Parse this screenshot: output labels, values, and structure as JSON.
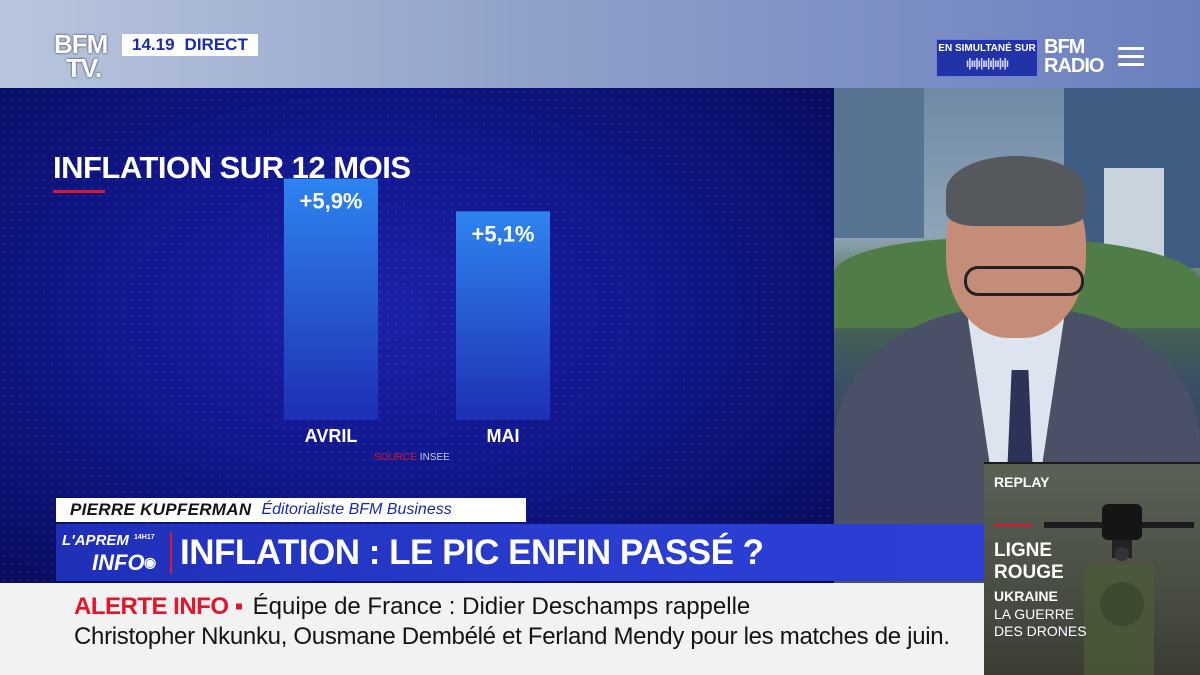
{
  "header": {
    "logo": "BFM TV.",
    "time": "14.19",
    "live_label": "DIRECT",
    "simulcast_label": "EN SIMULTANÉ SUR",
    "radio_logo": "BFM RADIO"
  },
  "chart_data": {
    "type": "bar",
    "title": "INFLATION SUR 12 MOIS",
    "categories": [
      "AVRIL",
      "MAI"
    ],
    "values": [
      5.9,
      5.1
    ],
    "data_labels": [
      "+5,9%",
      "+5,1%"
    ],
    "ylim": [
      0,
      6.6
    ],
    "xlabel": "",
    "ylabel": "",
    "source_word": "SOURCE",
    "source_name": "INSEE",
    "colors": {
      "bar_top": "#2e84f0",
      "bar_bottom": "#1d2fb4",
      "accent": "#e0162b"
    }
  },
  "strap": {
    "name": "PIERRE KUPFERMAN",
    "role": "Éditorialiste BFM Business"
  },
  "headline_bar": {
    "show_line1": "L'APREM",
    "show_line2": "INFO",
    "show_time": "14H17",
    "headline": "INFLATION : LE PIC ENFIN PASSÉ ?"
  },
  "ticker": {
    "alert_label": "ALERTE INFO ▪",
    "line1": "Équipe de France : Didier Deschamps rappelle",
    "line2": "Christopher Nkunku, Ousmane Dembélé et Ferland Mendy pour les matches de juin."
  },
  "replay": {
    "tag": "REPLAY",
    "title": "LIGNE ROUGE",
    "subtitle": "UKRAINE",
    "description": "LA GUERRE DES DRONES"
  }
}
